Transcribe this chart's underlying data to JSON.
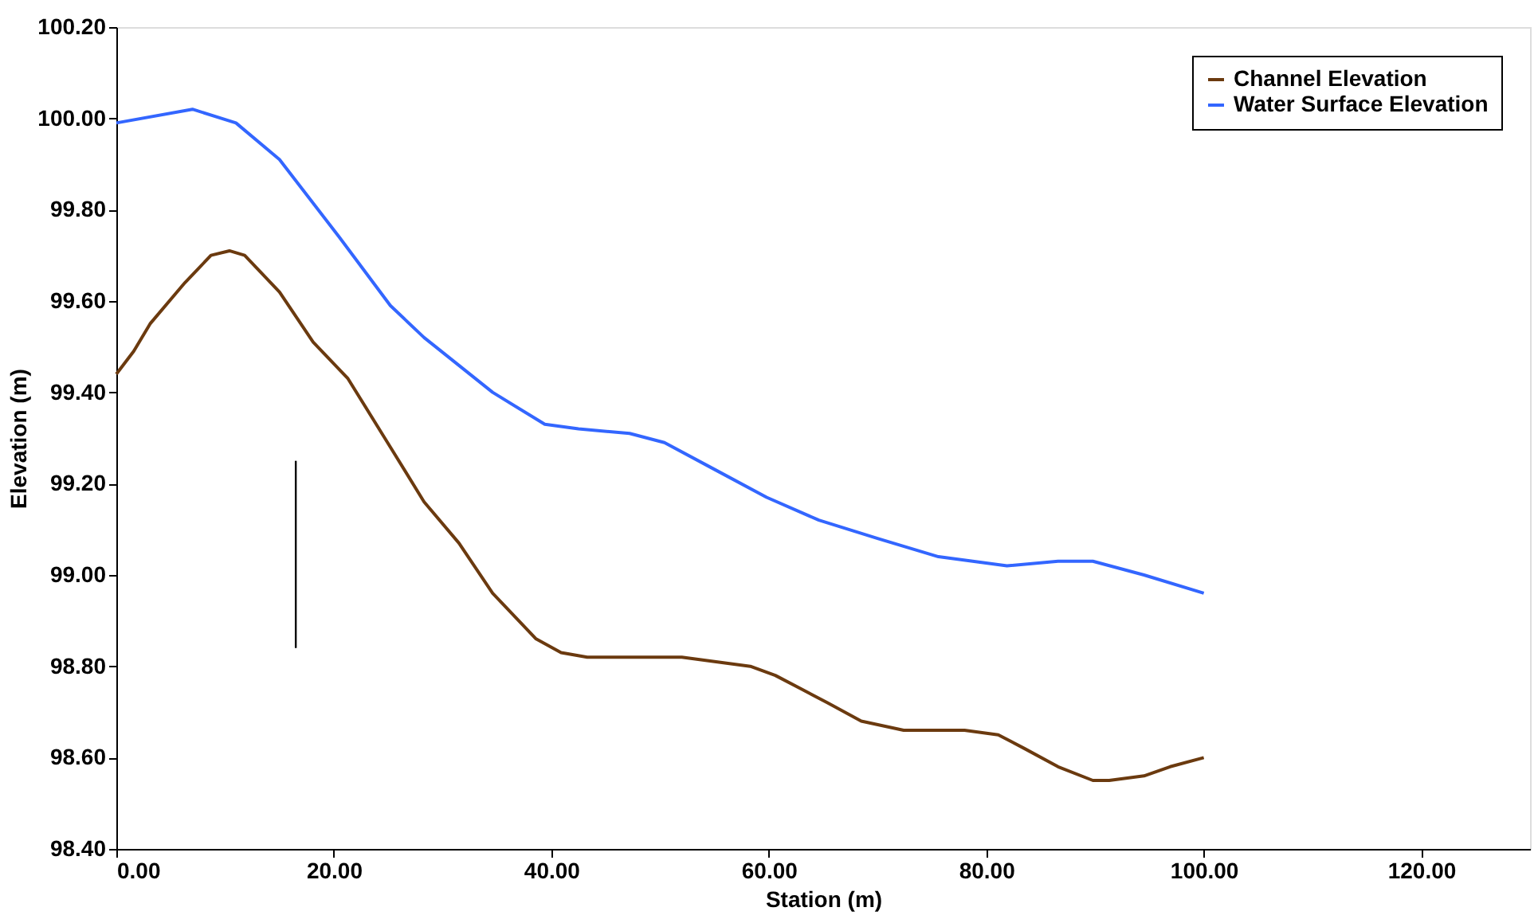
{
  "chart_data": {
    "type": "line",
    "xlabel": "Station (m)",
    "ylabel": "Elevation (m)",
    "xlim": [
      0,
      130
    ],
    "xticks": [
      {
        "value": 0,
        "label": "0.00"
      },
      {
        "value": 20,
        "label": "20.00"
      },
      {
        "value": 40,
        "label": "40.00"
      },
      {
        "value": 60,
        "label": "60.00"
      },
      {
        "value": 80,
        "label": "80.00"
      },
      {
        "value": 100,
        "label": "100.00"
      },
      {
        "value": 120,
        "label": "120.00"
      }
    ],
    "ylim": [
      98.4,
      100.2
    ],
    "yticks": [
      {
        "value": 98.4,
        "label": "98.40"
      },
      {
        "value": 98.6,
        "label": "98.60"
      },
      {
        "value": 98.8,
        "label": "98.80"
      },
      {
        "value": 99.0,
        "label": "99.00"
      },
      {
        "value": 99.2,
        "label": "99.20"
      },
      {
        "value": 99.4,
        "label": "99.40"
      },
      {
        "value": 99.6,
        "label": "99.60"
      },
      {
        "value": 99.8,
        "label": "99.80"
      },
      {
        "value": 100.0,
        "label": "100.00"
      },
      {
        "value": 100.2,
        "label": "100.20"
      }
    ],
    "grid": false,
    "legend": "top right",
    "line_style": "solid",
    "series": [
      {
        "name": "Channel Elevation",
        "color": "#6b3a0f",
        "x": [
          0,
          1.6,
          3.1,
          6.3,
          8.7,
          10.4,
          11.8,
          15,
          18.1,
          21.3,
          25.2,
          28.3,
          31.5,
          34.6,
          38.6,
          40.9,
          43.3,
          52,
          58.3,
          60.6,
          63,
          65.4,
          68.5,
          72.4,
          78,
          81.1,
          83.5,
          86.6,
          89.8,
          91.3,
          94.5,
          96.9,
          100
        ],
        "values": [
          99.44,
          99.49,
          99.55,
          99.64,
          99.7,
          99.71,
          99.7,
          99.62,
          99.51,
          99.43,
          99.28,
          99.16,
          99.07,
          98.96,
          98.86,
          98.83,
          98.82,
          98.82,
          98.8,
          98.78,
          98.75,
          98.72,
          98.68,
          98.66,
          98.66,
          98.65,
          98.62,
          98.58,
          98.55,
          98.55,
          98.56,
          98.58,
          98.6
        ]
      },
      {
        "name": "Water Surface Elevation",
        "color": "#3366ff",
        "x": [
          0,
          7,
          11,
          15,
          20.5,
          25.2,
          28.3,
          34.6,
          39.4,
          42.5,
          47.2,
          50.4,
          55.1,
          59.8,
          64.6,
          70,
          75.6,
          81.9,
          86.6,
          89.8,
          94.5,
          100
        ],
        "values": [
          99.99,
          100.02,
          99.99,
          99.91,
          99.74,
          99.59,
          99.52,
          99.4,
          99.33,
          99.32,
          99.31,
          99.29,
          99.23,
          99.17,
          99.12,
          99.08,
          99.04,
          99.02,
          99.03,
          99.03,
          99.0,
          98.96
        ]
      },
      {
        "color": "#000000",
        "x": [
          16.5,
          16.5
        ],
        "values": [
          98.84,
          99.25
        ]
      }
    ]
  }
}
